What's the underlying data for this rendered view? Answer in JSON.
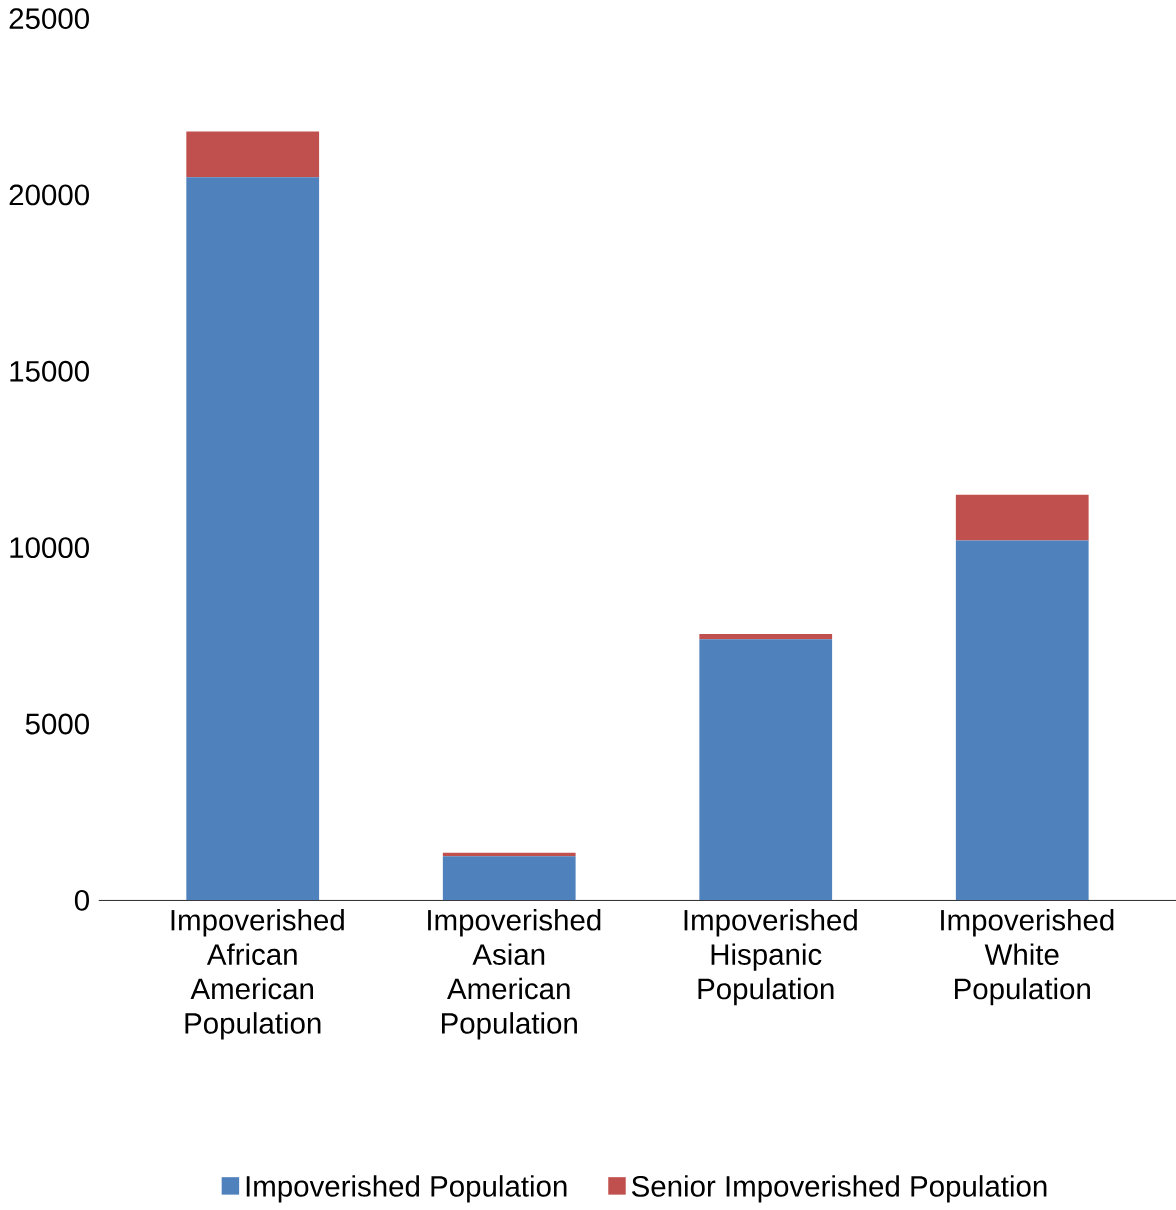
{
  "chart_data": {
    "type": "bar",
    "stacked": true,
    "categories": [
      "Impoverished African American Population",
      "Impoverished Asian American Population",
      "Impoverished Hispanic Population",
      "Impoverished White Population"
    ],
    "series": [
      {
        "name": "Impoverished Population",
        "color": "#4f81bd",
        "values": [
          20500,
          1250,
          7400,
          10200
        ]
      },
      {
        "name": "Senior Impoverished Population",
        "color": "#c0504d",
        "values": [
          1300,
          100,
          150,
          1300
        ]
      }
    ],
    "ylim": [
      0,
      25000
    ],
    "yticks": [
      0,
      5000,
      10000,
      15000,
      20000,
      25000
    ],
    "grid": false,
    "legend": "bottom"
  }
}
